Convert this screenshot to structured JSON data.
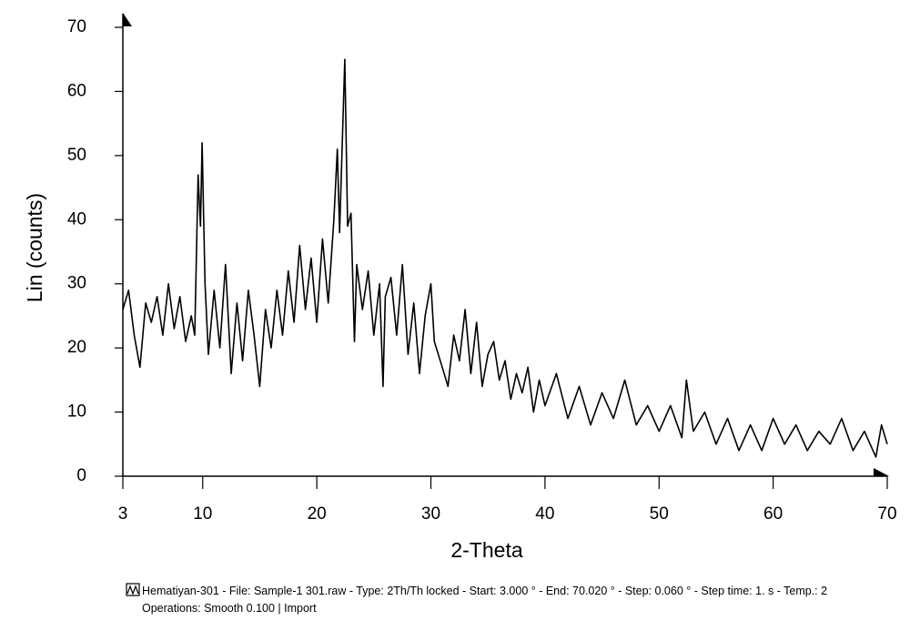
{
  "chart_data": {
    "type": "line",
    "x_label": "2-Theta",
    "y_label": "Lin (counts)",
    "xlim": [
      3,
      70
    ],
    "xticks": [
      3,
      10,
      20,
      30,
      40,
      50,
      60,
      70
    ],
    "ylim": [
      0,
      70
    ],
    "yticks": [
      0,
      10,
      20,
      30,
      40,
      50,
      60,
      70
    ],
    "series": [
      {
        "name": "Hematiyan-301 - File: Sample-1  301.raw - Type: 2Th/Th locked - Start: 3.000 ° - End: 70.020 ° - Step: 0.060 ° - Step time: 1. s - Temp.: 2",
        "color": "#000000",
        "x": [
          3,
          3.5,
          4,
          4.5,
          5,
          5.5,
          6,
          6.5,
          7,
          7.5,
          8,
          8.5,
          9,
          9.3,
          9.6,
          9.8,
          9.95,
          10.2,
          10.5,
          11,
          11.5,
          12,
          12.5,
          13,
          13.5,
          14,
          14.5,
          15,
          15.5,
          16,
          16.5,
          17,
          17.5,
          18,
          18.5,
          19,
          19.5,
          20,
          20.5,
          21,
          21.5,
          21.8,
          22,
          22.2,
          22.45,
          22.7,
          23,
          23.3,
          23.5,
          24,
          24.5,
          25,
          25.5,
          25.8,
          26,
          26.5,
          27,
          27.5,
          28,
          28.5,
          29,
          29.5,
          30,
          30.3,
          31,
          31.5,
          32,
          32.5,
          33,
          33.5,
          34,
          34.5,
          35,
          35.5,
          36,
          36.5,
          37,
          37.5,
          38,
          38.5,
          39,
          39.5,
          40,
          41,
          42,
          43,
          44,
          45,
          46,
          47,
          48,
          49,
          50,
          51,
          52,
          52.4,
          53,
          54,
          55,
          56,
          57,
          58,
          59,
          60,
          61,
          62,
          63,
          64,
          65,
          66,
          67,
          68,
          69,
          69.5,
          70
        ],
        "values": [
          26,
          29,
          22,
          17,
          27,
          24,
          28,
          22,
          30,
          23,
          28,
          21,
          25,
          22,
          47,
          39,
          52,
          30,
          19,
          29,
          20,
          33,
          16,
          27,
          18,
          29,
          22,
          14,
          26,
          20,
          29,
          22,
          32,
          24,
          36,
          26,
          34,
          24,
          37,
          27,
          40,
          51,
          38,
          50,
          65,
          39,
          41,
          21,
          33,
          26,
          32,
          22,
          30,
          14,
          28,
          31,
          22,
          33,
          19,
          27,
          16,
          25,
          30,
          21,
          17,
          14,
          22,
          18,
          26,
          16,
          24,
          14,
          19,
          21,
          15,
          18,
          12,
          16,
          13,
          17,
          10,
          15,
          11,
          16,
          9,
          14,
          8,
          13,
          9,
          15,
          8,
          11,
          7,
          11,
          6,
          15,
          7,
          10,
          5,
          9,
          4,
          8,
          4,
          9,
          5,
          8,
          4,
          7,
          5,
          9,
          4,
          7,
          3,
          8,
          5
        ]
      }
    ],
    "operations": "Operations: Smooth 0.100 | Import"
  }
}
